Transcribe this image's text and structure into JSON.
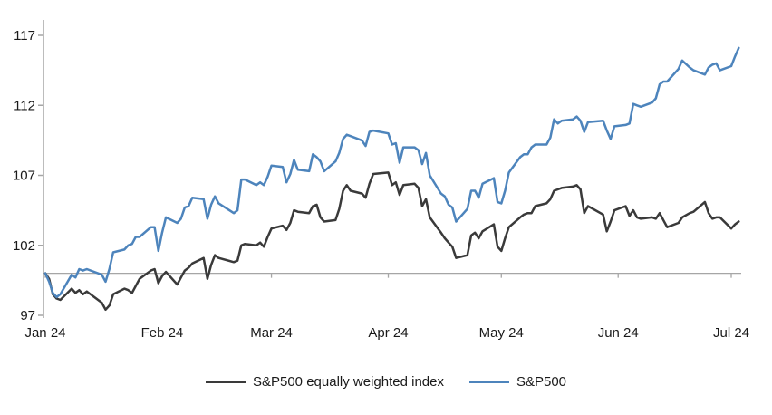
{
  "chart_data": {
    "type": "line",
    "title": "",
    "x_axis": {
      "labels": [
        "Jan 24",
        "Feb 24",
        "Mar 24",
        "Apr 24",
        "May 24",
        "Jun 24",
        "Jul 24"
      ],
      "tick_day_offsets": [
        0,
        31,
        60,
        91,
        121,
        152,
        182
      ]
    },
    "y_axis": {
      "ticks": [
        97,
        102,
        107,
        112,
        117
      ],
      "min": 97,
      "max": 118.5
    },
    "baseline_value": 100,
    "grid": false,
    "legend_position": "bottom",
    "colors": {
      "axis": "#a6a6a6",
      "label": "#1a1a1a",
      "equal_weight_line": "#3a3a3a",
      "sp500_line": "#4d84bc"
    },
    "series": [
      {
        "name": "S&P500 equally weighted index",
        "color": "#3a3a3a",
        "points": [
          [
            "01-01",
            100.0
          ],
          [
            "01-02",
            99.6
          ],
          [
            "01-03",
            98.5
          ],
          [
            "01-04",
            98.2
          ],
          [
            "01-05",
            98.1
          ],
          [
            "01-08",
            98.9
          ],
          [
            "01-09",
            98.6
          ],
          [
            "01-10",
            98.8
          ],
          [
            "01-11",
            98.5
          ],
          [
            "01-12",
            98.7
          ],
          [
            "01-16",
            97.9
          ],
          [
            "01-17",
            97.4
          ],
          [
            "01-18",
            97.7
          ],
          [
            "01-19",
            98.5
          ],
          [
            "01-22",
            98.9
          ],
          [
            "01-23",
            98.8
          ],
          [
            "01-24",
            98.6
          ],
          [
            "01-25",
            99.1
          ],
          [
            "01-26",
            99.6
          ],
          [
            "01-29",
            100.2
          ],
          [
            "01-30",
            100.3
          ],
          [
            "01-31",
            99.3
          ],
          [
            "02-01",
            99.8
          ],
          [
            "02-02",
            100.1
          ],
          [
            "02-05",
            99.2
          ],
          [
            "02-06",
            99.7
          ],
          [
            "02-07",
            100.2
          ],
          [
            "02-08",
            100.4
          ],
          [
            "02-09",
            100.7
          ],
          [
            "02-12",
            101.1
          ],
          [
            "02-13",
            99.6
          ],
          [
            "02-14",
            100.6
          ],
          [
            "02-15",
            101.3
          ],
          [
            "02-16",
            101.1
          ],
          [
            "02-20",
            100.8
          ],
          [
            "02-21",
            100.9
          ],
          [
            "02-22",
            102.0
          ],
          [
            "02-23",
            102.1
          ],
          [
            "02-26",
            102.0
          ],
          [
            "02-27",
            102.2
          ],
          [
            "02-28",
            101.9
          ],
          [
            "02-29",
            102.6
          ],
          [
            "03-01",
            103.2
          ],
          [
            "03-04",
            103.4
          ],
          [
            "03-05",
            103.1
          ],
          [
            "03-06",
            103.6
          ],
          [
            "03-07",
            104.5
          ],
          [
            "03-08",
            104.4
          ],
          [
            "03-11",
            104.3
          ],
          [
            "03-12",
            104.8
          ],
          [
            "03-13",
            104.9
          ],
          [
            "03-14",
            104.0
          ],
          [
            "03-15",
            103.7
          ],
          [
            "03-18",
            103.8
          ],
          [
            "03-19",
            104.6
          ],
          [
            "03-20",
            105.9
          ],
          [
            "03-21",
            106.3
          ],
          [
            "03-22",
            105.9
          ],
          [
            "03-25",
            105.7
          ],
          [
            "03-26",
            105.4
          ],
          [
            "03-27",
            106.4
          ],
          [
            "03-28",
            107.1
          ],
          [
            "04-01",
            107.2
          ],
          [
            "04-02",
            106.3
          ],
          [
            "04-03",
            106.5
          ],
          [
            "04-04",
            105.6
          ],
          [
            "04-05",
            106.3
          ],
          [
            "04-08",
            106.4
          ],
          [
            "04-09",
            106.1
          ],
          [
            "04-10",
            104.8
          ],
          [
            "04-11",
            105.3
          ],
          [
            "04-12",
            104.0
          ],
          [
            "04-15",
            102.9
          ],
          [
            "04-16",
            102.5
          ],
          [
            "04-17",
            102.2
          ],
          [
            "04-18",
            101.9
          ],
          [
            "04-19",
            101.1
          ],
          [
            "04-22",
            101.3
          ],
          [
            "04-23",
            102.7
          ],
          [
            "04-24",
            102.9
          ],
          [
            "04-25",
            102.5
          ],
          [
            "04-26",
            103.0
          ],
          [
            "04-29",
            103.5
          ],
          [
            "04-30",
            101.9
          ],
          [
            "05-01",
            101.6
          ],
          [
            "05-02",
            102.5
          ],
          [
            "05-03",
            103.3
          ],
          [
            "05-06",
            104.0
          ],
          [
            "05-07",
            104.2
          ],
          [
            "05-08",
            104.3
          ],
          [
            "05-09",
            104.3
          ],
          [
            "05-10",
            104.8
          ],
          [
            "05-13",
            105.0
          ],
          [
            "05-14",
            105.3
          ],
          [
            "05-15",
            105.9
          ],
          [
            "05-16",
            106.0
          ],
          [
            "05-17",
            106.1
          ],
          [
            "05-20",
            106.2
          ],
          [
            "05-21",
            106.3
          ],
          [
            "05-22",
            106.0
          ],
          [
            "05-23",
            104.3
          ],
          [
            "05-24",
            104.8
          ],
          [
            "05-28",
            104.2
          ],
          [
            "05-29",
            103.0
          ],
          [
            "05-30",
            103.7
          ],
          [
            "05-31",
            104.5
          ],
          [
            "06-03",
            104.8
          ],
          [
            "06-04",
            104.1
          ],
          [
            "06-05",
            104.5
          ],
          [
            "06-06",
            104.0
          ],
          [
            "06-07",
            103.9
          ],
          [
            "06-10",
            104.0
          ],
          [
            "06-11",
            103.9
          ],
          [
            "06-12",
            104.3
          ],
          [
            "06-13",
            103.8
          ],
          [
            "06-14",
            103.3
          ],
          [
            "06-17",
            103.6
          ],
          [
            "06-18",
            104.0
          ],
          [
            "06-20",
            104.3
          ],
          [
            "06-21",
            104.4
          ],
          [
            "06-24",
            105.1
          ],
          [
            "06-25",
            104.3
          ],
          [
            "06-26",
            103.9
          ],
          [
            "06-27",
            104.0
          ],
          [
            "06-28",
            104.0
          ],
          [
            "07-01",
            103.2
          ],
          [
            "07-02",
            103.5
          ],
          [
            "07-03",
            103.7
          ]
        ]
      },
      {
        "name": "S&P500",
        "color": "#4d84bc",
        "points": [
          [
            "01-01",
            100.0
          ],
          [
            "01-02",
            99.4
          ],
          [
            "01-03",
            98.6
          ],
          [
            "01-04",
            98.3
          ],
          [
            "01-05",
            98.5
          ],
          [
            "01-08",
            99.9
          ],
          [
            "01-09",
            99.7
          ],
          [
            "01-10",
            100.3
          ],
          [
            "01-11",
            100.2
          ],
          [
            "01-12",
            100.3
          ],
          [
            "01-16",
            99.9
          ],
          [
            "01-17",
            99.4
          ],
          [
            "01-18",
            100.3
          ],
          [
            "01-19",
            101.5
          ],
          [
            "01-22",
            101.7
          ],
          [
            "01-23",
            102.0
          ],
          [
            "01-24",
            102.1
          ],
          [
            "01-25",
            102.6
          ],
          [
            "01-26",
            102.6
          ],
          [
            "01-29",
            103.3
          ],
          [
            "01-30",
            103.3
          ],
          [
            "01-31",
            101.6
          ],
          [
            "02-01",
            102.9
          ],
          [
            "02-02",
            104.0
          ],
          [
            "02-05",
            103.6
          ],
          [
            "02-06",
            103.9
          ],
          [
            "02-07",
            104.7
          ],
          [
            "02-08",
            104.8
          ],
          [
            "02-09",
            105.4
          ],
          [
            "02-12",
            105.3
          ],
          [
            "02-13",
            103.9
          ],
          [
            "02-14",
            104.9
          ],
          [
            "02-15",
            105.5
          ],
          [
            "02-16",
            105.0
          ],
          [
            "02-20",
            104.3
          ],
          [
            "02-21",
            104.5
          ],
          [
            "02-22",
            106.7
          ],
          [
            "02-23",
            106.7
          ],
          [
            "02-26",
            106.3
          ],
          [
            "02-27",
            106.5
          ],
          [
            "02-28",
            106.3
          ],
          [
            "02-29",
            106.9
          ],
          [
            "03-01",
            107.7
          ],
          [
            "03-04",
            107.6
          ],
          [
            "03-05",
            106.5
          ],
          [
            "03-06",
            107.1
          ],
          [
            "03-07",
            108.1
          ],
          [
            "03-08",
            107.4
          ],
          [
            "03-11",
            107.3
          ],
          [
            "03-12",
            108.5
          ],
          [
            "03-13",
            108.3
          ],
          [
            "03-14",
            108.0
          ],
          [
            "03-15",
            107.3
          ],
          [
            "03-18",
            108.0
          ],
          [
            "03-19",
            108.6
          ],
          [
            "03-20",
            109.6
          ],
          [
            "03-21",
            109.9
          ],
          [
            "03-22",
            109.8
          ],
          [
            "03-25",
            109.5
          ],
          [
            "03-26",
            109.1
          ],
          [
            "03-27",
            110.1
          ],
          [
            "03-28",
            110.2
          ],
          [
            "04-01",
            110.0
          ],
          [
            "04-02",
            109.2
          ],
          [
            "04-03",
            109.3
          ],
          [
            "04-04",
            107.9
          ],
          [
            "04-05",
            109.0
          ],
          [
            "04-08",
            109.0
          ],
          [
            "04-09",
            108.8
          ],
          [
            "04-10",
            107.8
          ],
          [
            "04-11",
            108.6
          ],
          [
            "04-12",
            107.0
          ],
          [
            "04-15",
            105.7
          ],
          [
            "04-16",
            105.5
          ],
          [
            "04-17",
            104.9
          ],
          [
            "04-18",
            104.7
          ],
          [
            "04-19",
            103.7
          ],
          [
            "04-22",
            104.6
          ],
          [
            "04-23",
            105.9
          ],
          [
            "04-24",
            105.9
          ],
          [
            "04-25",
            105.4
          ],
          [
            "04-26",
            106.4
          ],
          [
            "04-29",
            106.8
          ],
          [
            "04-30",
            105.1
          ],
          [
            "05-01",
            105.0
          ],
          [
            "05-02",
            105.9
          ],
          [
            "05-03",
            107.2
          ],
          [
            "05-06",
            108.3
          ],
          [
            "05-07",
            108.5
          ],
          [
            "05-08",
            108.5
          ],
          [
            "05-09",
            109.0
          ],
          [
            "05-10",
            109.2
          ],
          [
            "05-13",
            109.2
          ],
          [
            "05-14",
            109.7
          ],
          [
            "05-15",
            111.0
          ],
          [
            "05-16",
            110.7
          ],
          [
            "05-17",
            110.9
          ],
          [
            "05-20",
            111.0
          ],
          [
            "05-21",
            111.2
          ],
          [
            "05-22",
            110.9
          ],
          [
            "05-23",
            110.1
          ],
          [
            "05-24",
            110.8
          ],
          [
            "05-28",
            110.9
          ],
          [
            "05-29",
            110.2
          ],
          [
            "05-30",
            109.6
          ],
          [
            "05-31",
            110.5
          ],
          [
            "06-03",
            110.6
          ],
          [
            "06-04",
            110.7
          ],
          [
            "06-05",
            112.1
          ],
          [
            "06-06",
            112.0
          ],
          [
            "06-07",
            111.9
          ],
          [
            "06-10",
            112.2
          ],
          [
            "06-11",
            112.5
          ],
          [
            "06-12",
            113.5
          ],
          [
            "06-13",
            113.7
          ],
          [
            "06-14",
            113.7
          ],
          [
            "06-17",
            114.6
          ],
          [
            "06-18",
            115.2
          ],
          [
            "06-20",
            114.7
          ],
          [
            "06-21",
            114.5
          ],
          [
            "06-24",
            114.2
          ],
          [
            "06-25",
            114.7
          ],
          [
            "06-26",
            114.9
          ],
          [
            "06-27",
            115.0
          ],
          [
            "06-28",
            114.5
          ],
          [
            "07-01",
            114.8
          ],
          [
            "07-02",
            115.5
          ],
          [
            "07-03",
            116.1
          ]
        ]
      }
    ]
  }
}
